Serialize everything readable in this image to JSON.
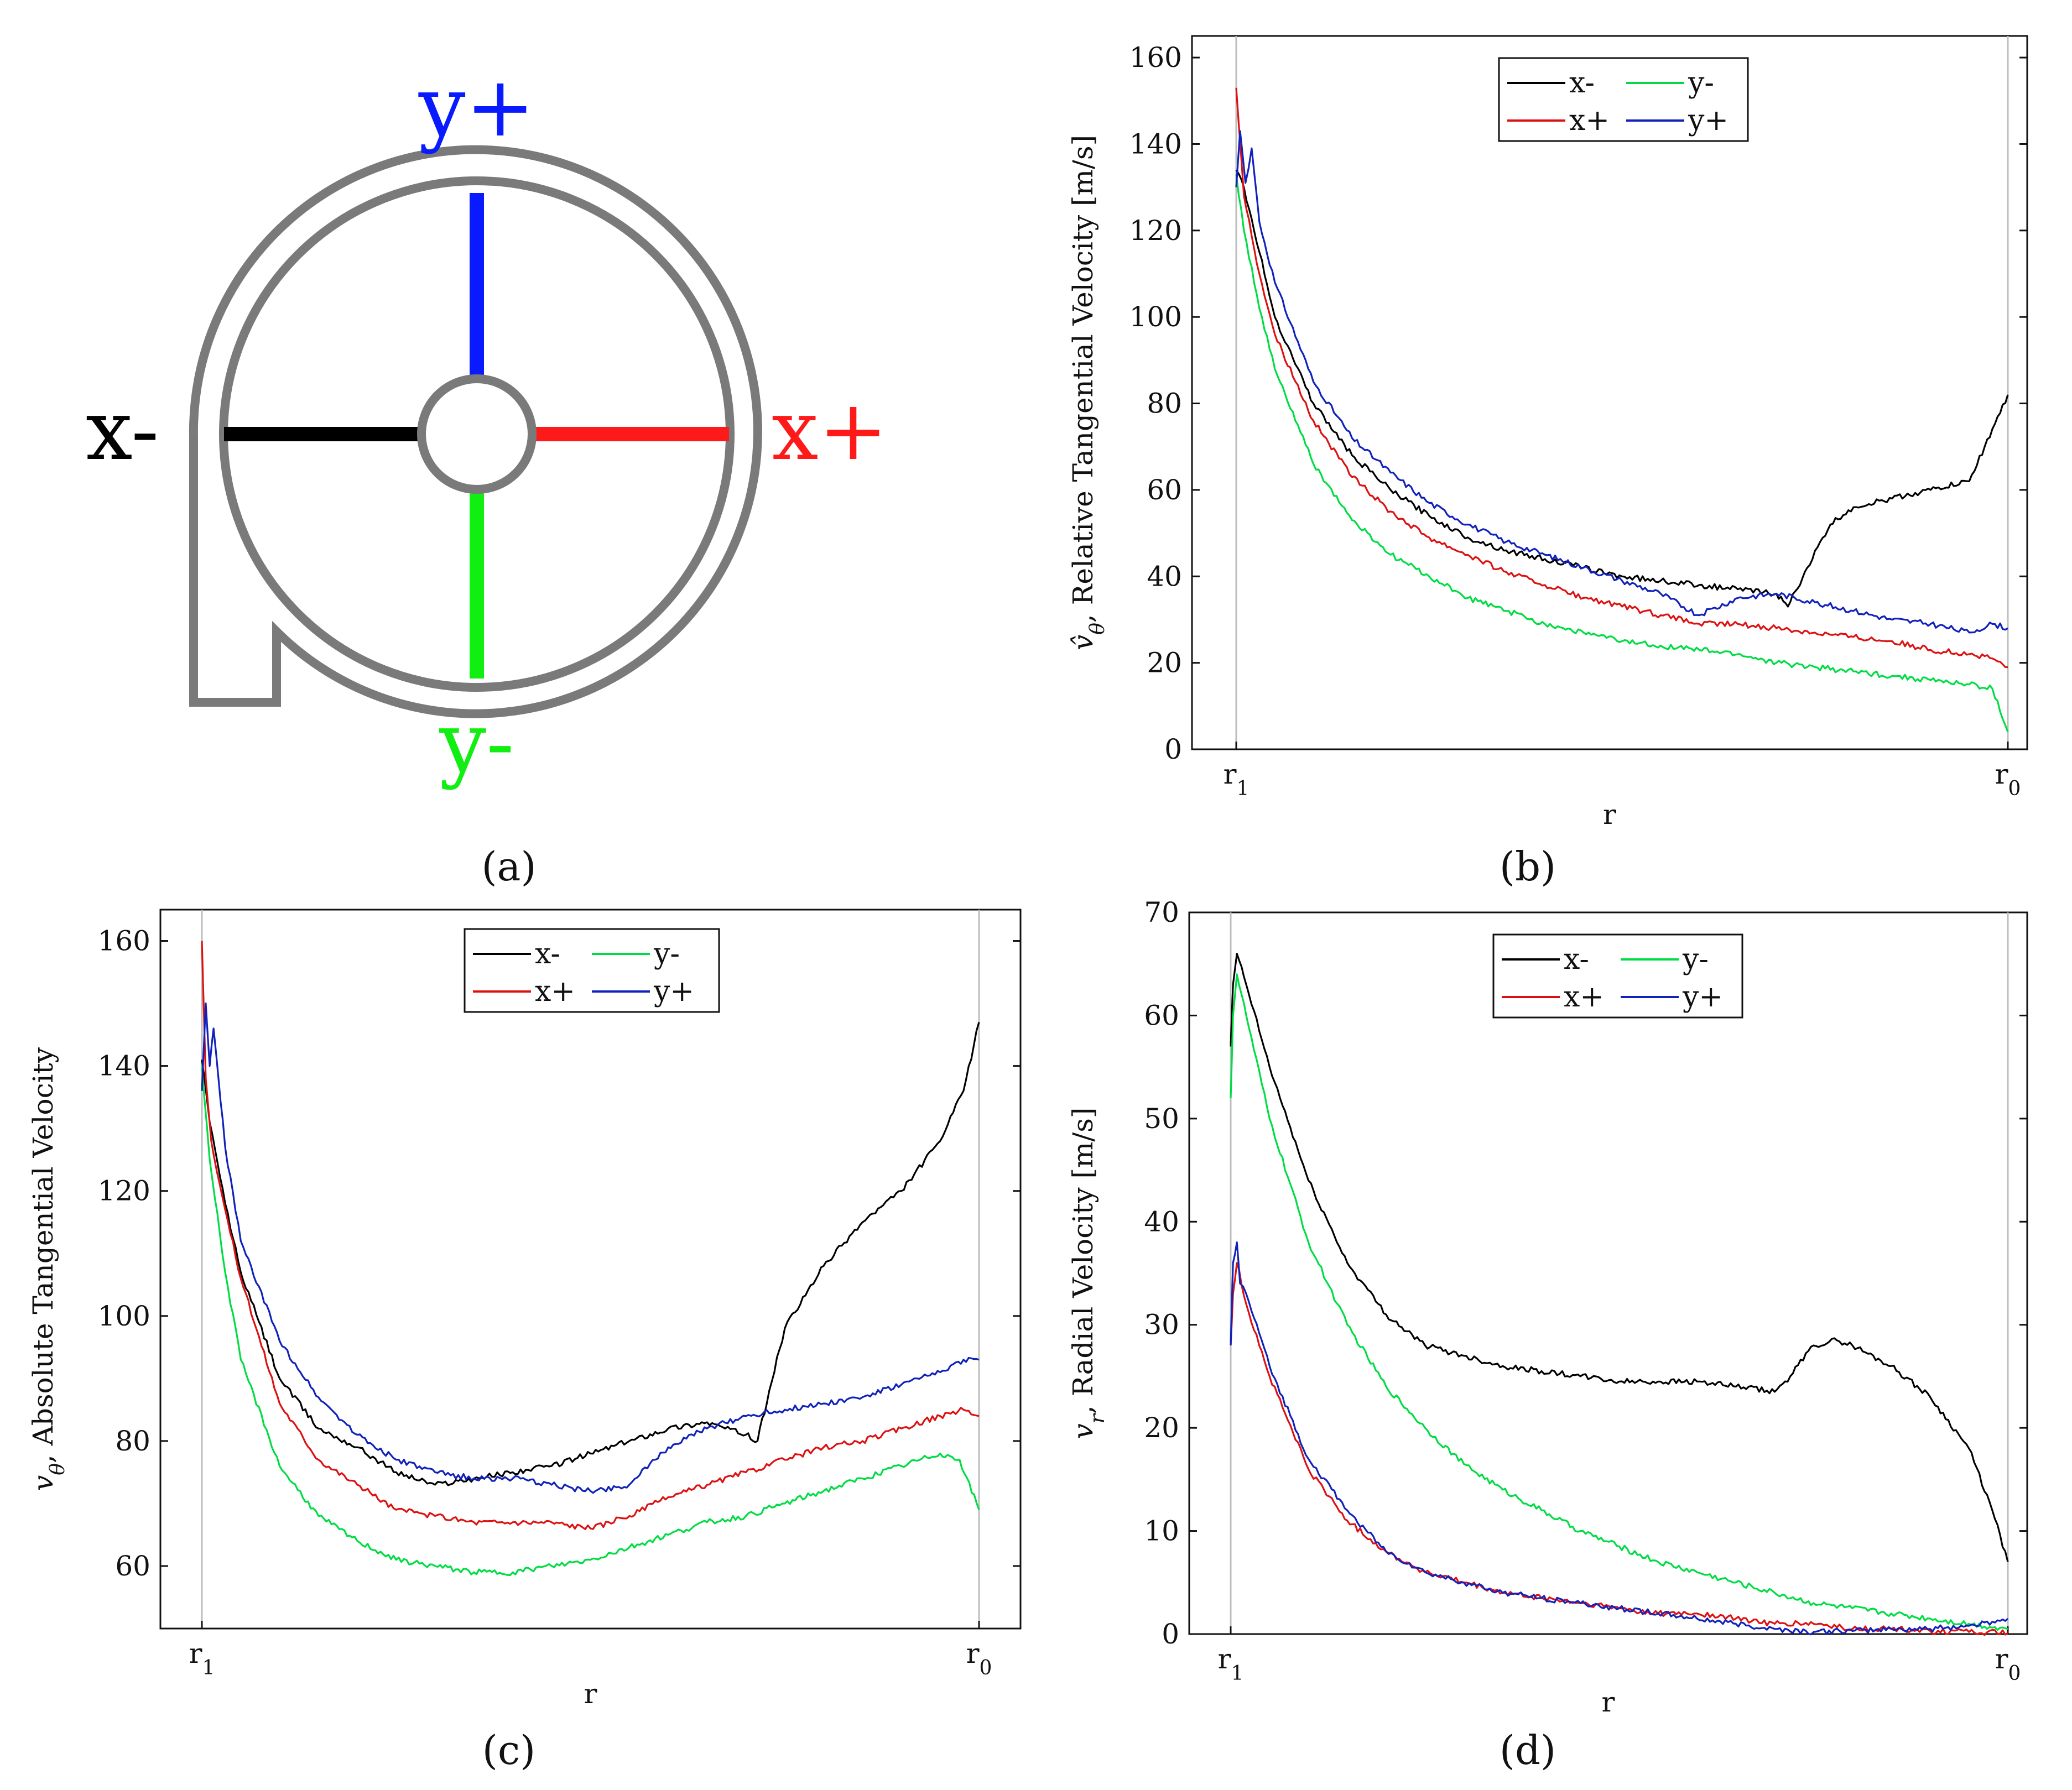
{
  "figure_captions": {
    "a": "(a)",
    "b": "(b)",
    "c": "(c)",
    "d": "(d)"
  },
  "diagram": {
    "labels": {
      "y_plus": "y+",
      "x_minus": "x-",
      "x_plus": "x+",
      "y_minus": "y-"
    },
    "colors": {
      "x_minus": "#000000",
      "x_plus": "#ff1a1a",
      "y_plus": "#0a1aff",
      "y_minus": "#11ee11",
      "casing": "#7a7a7a"
    }
  },
  "series_colors": {
    "x-": "#000000",
    "y-": "#00dd44",
    "x+": "#dd1111",
    "y+": "#1122bb"
  },
  "chart_data": [
    {
      "id": "b",
      "type": "line",
      "title": "",
      "xlabel": "r",
      "ylabel_main": "v̂",
      "ylabel_sub": "θ",
      "ylabel_rest": ", Relative Tangential Velocity [m/s]",
      "xlim": [
        0,
        1
      ],
      "ylim": [
        0,
        165
      ],
      "yticks": [
        0,
        20,
        40,
        60,
        80,
        100,
        120,
        140,
        160
      ],
      "x_ticklabels": [
        {
          "main": "r",
          "sub": "1"
        },
        {
          "main": "r",
          "sub": "0"
        }
      ],
      "legend": [
        "x-",
        "y-",
        "x+",
        "y+"
      ],
      "legend_position": "top-center",
      "series": [
        {
          "name": "x-",
          "x": [
            0,
            0.01,
            0.03,
            0.05,
            0.1,
            0.15,
            0.2,
            0.25,
            0.3,
            0.35,
            0.4,
            0.45,
            0.5,
            0.55,
            0.6,
            0.65,
            0.7,
            0.715,
            0.74,
            0.77,
            0.8,
            0.85,
            0.9,
            0.95,
            0.97,
            1.0
          ],
          "values": [
            134,
            130,
            115,
            100,
            80,
            68,
            60,
            54,
            49,
            46,
            44,
            42,
            40,
            39,
            38,
            37,
            36,
            33,
            42,
            52,
            56,
            58,
            60,
            62,
            70,
            82
          ]
        },
        {
          "name": "y-",
          "x": [
            0,
            0.01,
            0.03,
            0.05,
            0.1,
            0.15,
            0.2,
            0.25,
            0.3,
            0.35,
            0.4,
            0.45,
            0.5,
            0.55,
            0.6,
            0.65,
            0.7,
            0.75,
            0.8,
            0.85,
            0.9,
            0.95,
            0.98,
            1.0
          ],
          "values": [
            133,
            120,
            102,
            88,
            66,
            53,
            45,
            40,
            35,
            32,
            29,
            27,
            25,
            24,
            23,
            22,
            20,
            19,
            18,
            17,
            16,
            15,
            14,
            4
          ]
        },
        {
          "name": "x+",
          "x": [
            0,
            0.01,
            0.03,
            0.05,
            0.1,
            0.15,
            0.2,
            0.25,
            0.3,
            0.35,
            0.4,
            0.45,
            0.5,
            0.55,
            0.6,
            0.65,
            0.7,
            0.75,
            0.8,
            0.85,
            0.9,
            0.95,
            0.98,
            1.0
          ],
          "values": [
            153,
            128,
            110,
            96,
            76,
            63,
            55,
            49,
            45,
            41,
            38,
            35,
            33,
            31,
            29,
            29,
            28,
            27,
            26,
            25,
            23,
            22,
            21,
            19
          ]
        },
        {
          "name": "y+",
          "x": [
            0,
            0.005,
            0.012,
            0.02,
            0.03,
            0.05,
            0.1,
            0.15,
            0.2,
            0.25,
            0.3,
            0.35,
            0.4,
            0.45,
            0.5,
            0.55,
            0.6,
            0.65,
            0.7,
            0.75,
            0.8,
            0.85,
            0.9,
            0.95,
            0.98,
            1.0
          ],
          "values": [
            130,
            143,
            131,
            139,
            122,
            108,
            85,
            72,
            64,
            57,
            52,
            48,
            45,
            42,
            39,
            36,
            31,
            35,
            36,
            34,
            32,
            30,
            29,
            27,
            29,
            28
          ]
        }
      ]
    },
    {
      "id": "c",
      "type": "line",
      "title": "",
      "xlabel": "r",
      "ylabel_main": "v",
      "ylabel_sub": "θ",
      "ylabel_rest": ", Absolute Tangential Velocity",
      "xlim": [
        0,
        1
      ],
      "ylim": [
        50,
        165
      ],
      "yticks": [
        60,
        80,
        100,
        120,
        140,
        160
      ],
      "x_ticklabels": [
        {
          "main": "r",
          "sub": "1"
        },
        {
          "main": "r",
          "sub": "0"
        }
      ],
      "legend": [
        "x-",
        "y-",
        "x+",
        "y+"
      ],
      "legend_position": "top-center",
      "series": [
        {
          "name": "x-",
          "x": [
            0,
            0.01,
            0.03,
            0.05,
            0.1,
            0.15,
            0.2,
            0.25,
            0.3,
            0.35,
            0.4,
            0.45,
            0.5,
            0.55,
            0.6,
            0.65,
            0.7,
            0.715,
            0.73,
            0.75,
            0.8,
            0.85,
            0.9,
            0.95,
            0.98,
            1.0
          ],
          "values": [
            141,
            131,
            118,
            107,
            90,
            82,
            79,
            75,
            73,
            74,
            75,
            76,
            78,
            80,
            82,
            83,
            81,
            80,
            88,
            98,
            108,
            115,
            120,
            128,
            136,
            147
          ]
        },
        {
          "name": "y-",
          "x": [
            0,
            0.01,
            0.03,
            0.05,
            0.1,
            0.15,
            0.2,
            0.25,
            0.3,
            0.35,
            0.4,
            0.45,
            0.5,
            0.55,
            0.6,
            0.65,
            0.7,
            0.75,
            0.8,
            0.85,
            0.9,
            0.95,
            0.975,
            1.0
          ],
          "values": [
            140,
            125,
            107,
            93,
            76,
            68,
            64,
            61,
            60,
            59,
            59,
            60,
            61,
            63,
            65,
            67,
            68,
            70,
            72,
            74,
            76,
            78,
            77,
            69
          ]
        },
        {
          "name": "x+",
          "x": [
            0,
            0.005,
            0.012,
            0.03,
            0.05,
            0.1,
            0.15,
            0.2,
            0.25,
            0.3,
            0.35,
            0.4,
            0.45,
            0.5,
            0.55,
            0.6,
            0.65,
            0.7,
            0.75,
            0.8,
            0.85,
            0.9,
            0.95,
            0.98,
            1.0
          ],
          "values": [
            160,
            138,
            128,
            117,
            106,
            86,
            77,
            73,
            69,
            68,
            67,
            67,
            67,
            66,
            68,
            71,
            73,
            75,
            77,
            79,
            80,
            82,
            84,
            85,
            84
          ]
        },
        {
          "name": "y+",
          "x": [
            0,
            0.005,
            0.01,
            0.015,
            0.03,
            0.05,
            0.1,
            0.15,
            0.2,
            0.25,
            0.3,
            0.35,
            0.4,
            0.45,
            0.5,
            0.55,
            0.6,
            0.65,
            0.7,
            0.75,
            0.8,
            0.85,
            0.9,
            0.95,
            0.98,
            1.0
          ],
          "values": [
            136,
            150,
            140,
            146,
            127,
            112,
            96,
            87,
            81,
            77,
            75,
            74,
            74,
            73,
            72,
            73,
            79,
            82,
            84,
            85,
            86,
            87,
            89,
            91,
            93,
            93
          ]
        }
      ]
    },
    {
      "id": "d",
      "type": "line",
      "title": "",
      "xlabel": "r",
      "ylabel_main": "v",
      "ylabel_sub": "r",
      "ylabel_rest": ", Radial Velocity [m/s]",
      "xlim": [
        0,
        1
      ],
      "ylim": [
        0,
        70
      ],
      "yticks": [
        0,
        10,
        20,
        30,
        40,
        50,
        60,
        70
      ],
      "x_ticklabels": [
        {
          "main": "r",
          "sub": "1"
        },
        {
          "main": "r",
          "sub": "0"
        }
      ],
      "legend": [
        "x-",
        "y-",
        "x+",
        "y+"
      ],
      "legend_position": "top-center",
      "series": [
        {
          "name": "x-",
          "x": [
            0,
            0.003,
            0.008,
            0.02,
            0.05,
            0.1,
            0.15,
            0.2,
            0.25,
            0.3,
            0.35,
            0.4,
            0.45,
            0.5,
            0.55,
            0.6,
            0.65,
            0.7,
            0.72,
            0.75,
            0.78,
            0.8,
            0.85,
            0.9,
            0.95,
            0.98,
            1.0
          ],
          "values": [
            57,
            63,
            66,
            63,
            55,
            44,
            36,
            31,
            28,
            27,
            26,
            25.5,
            25,
            24.5,
            24.5,
            24.5,
            24,
            23.5,
            25,
            28,
            28.5,
            28,
            26,
            23,
            18,
            12,
            7
          ]
        },
        {
          "name": "y-",
          "x": [
            0,
            0.003,
            0.008,
            0.02,
            0.05,
            0.1,
            0.15,
            0.2,
            0.25,
            0.3,
            0.35,
            0.4,
            0.45,
            0.5,
            0.55,
            0.6,
            0.65,
            0.7,
            0.75,
            0.8,
            0.85,
            0.9,
            0.95,
            1.0
          ],
          "values": [
            52,
            60,
            64,
            60,
            50,
            38,
            30,
            24,
            20,
            16.5,
            14,
            12,
            10,
            8.5,
            7,
            6,
            5,
            4,
            3,
            2.5,
            2,
            1.5,
            1,
            0.5
          ]
        },
        {
          "name": "x+",
          "x": [
            0,
            0.003,
            0.008,
            0.02,
            0.05,
            0.1,
            0.15,
            0.2,
            0.25,
            0.3,
            0.35,
            0.4,
            0.45,
            0.5,
            0.55,
            0.6,
            0.65,
            0.7,
            0.75,
            0.8,
            0.85,
            0.9,
            0.95,
            1.0
          ],
          "values": [
            28,
            33,
            36,
            32,
            25,
            16,
            11,
            8,
            6,
            5,
            4,
            3.5,
            3,
            2.5,
            2,
            2,
            1.5,
            1,
            1,
            0.5,
            0.5,
            0.3,
            0.2,
            0.1
          ]
        },
        {
          "name": "y+",
          "x": [
            0,
            0.003,
            0.008,
            0.012,
            0.02,
            0.05,
            0.1,
            0.15,
            0.2,
            0.25,
            0.3,
            0.35,
            0.4,
            0.45,
            0.5,
            0.55,
            0.6,
            0.65,
            0.7,
            0.75,
            0.8,
            0.85,
            0.9,
            0.95,
            0.98,
            1.0
          ],
          "values": [
            28,
            36,
            38,
            34,
            33,
            26,
            17,
            12,
            8,
            6,
            5,
            4,
            3.5,
            3,
            2.5,
            2,
            1.5,
            1,
            0.5,
            0.2,
            0.3,
            0.5,
            0.5,
            0.8,
            1.2,
            1.5
          ]
        }
      ]
    }
  ]
}
